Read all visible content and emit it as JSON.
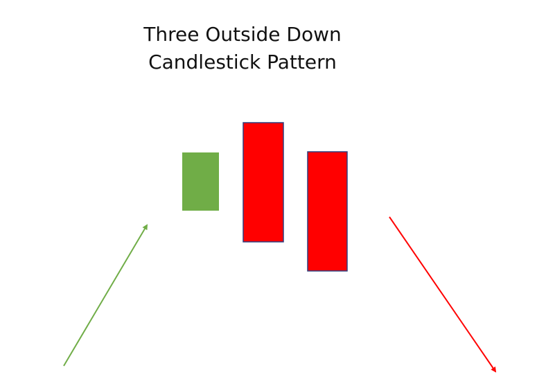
{
  "title": {
    "line1": "Three Outside Down",
    "line2": "Candlestick Pattern"
  },
  "colors": {
    "bullish": "#70ad47",
    "bearish": "#ff0000",
    "bearish_border": "#2f3f7f",
    "uptrend_arrow": "#70ad47",
    "downtrend_arrow": "#ff0000"
  },
  "candles": [
    {
      "name": "candle-1-bullish",
      "color": "bullish"
    },
    {
      "name": "candle-2-bearish-engulfing",
      "color": "bearish"
    },
    {
      "name": "candle-3-bearish-confirmation",
      "color": "bearish"
    }
  ],
  "arrows": [
    {
      "name": "uptrend-arrow",
      "direction": "up-right",
      "color": "uptrend_arrow"
    },
    {
      "name": "downtrend-arrow",
      "direction": "down-right",
      "color": "downtrend_arrow"
    }
  ]
}
